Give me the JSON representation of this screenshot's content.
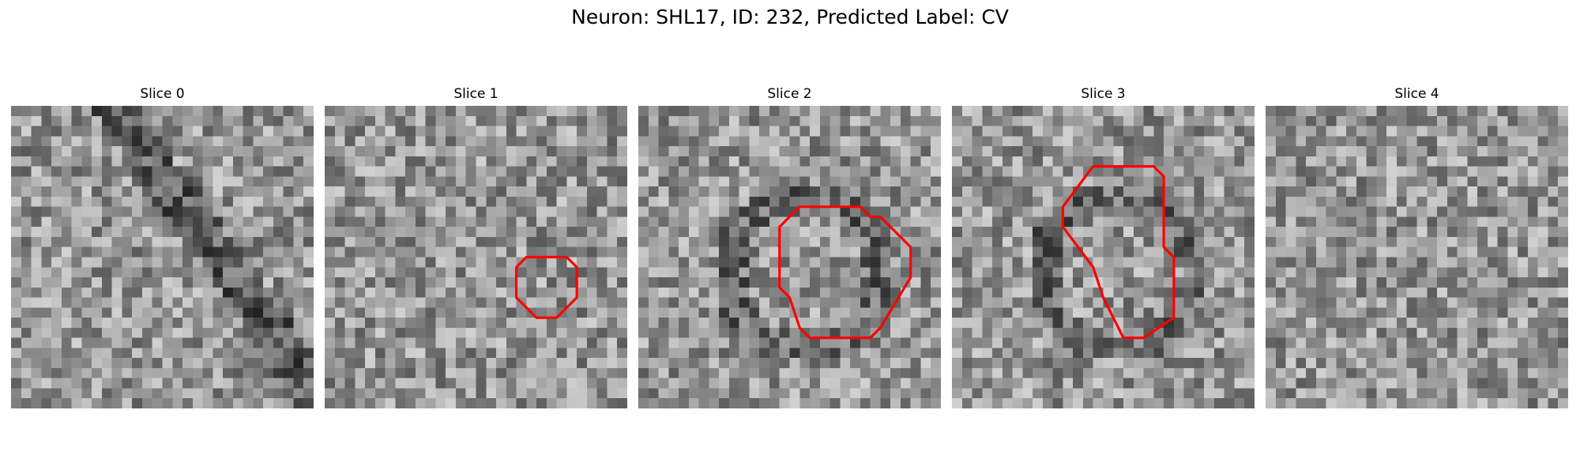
{
  "figure": {
    "title": "Neuron: SHL17, ID: 232, Predicted Label: CV"
  },
  "panels": [
    {
      "title": "Slice 0",
      "seed": 11,
      "contour": []
    },
    {
      "title": "Slice 1",
      "seed": 23,
      "contour": [
        [
          20,
          15
        ],
        [
          19,
          16
        ],
        [
          19,
          19
        ],
        [
          21,
          21
        ],
        [
          23,
          21
        ],
        [
          25,
          19
        ],
        [
          25,
          16
        ],
        [
          24,
          15
        ]
      ]
    },
    {
      "title": "Slice 2",
      "seed": 37,
      "contour": [
        [
          15,
          11
        ],
        [
          14,
          12
        ],
        [
          14,
          18
        ],
        [
          15,
          19
        ],
        [
          16,
          22
        ],
        [
          17,
          23
        ],
        [
          23,
          23
        ],
        [
          24,
          22
        ],
        [
          27,
          17
        ],
        [
          27,
          14
        ],
        [
          24,
          11
        ],
        [
          23,
          11
        ],
        [
          22,
          10
        ],
        [
          16,
          10
        ]
      ]
    },
    {
      "title": "Slice 3",
      "seed": 41,
      "contour": [
        [
          14,
          6
        ],
        [
          11,
          10
        ],
        [
          11,
          12
        ],
        [
          14,
          16
        ],
        [
          15,
          19
        ],
        [
          17,
          23
        ],
        [
          19,
          23
        ],
        [
          22,
          21
        ],
        [
          22,
          15
        ],
        [
          21,
          14
        ],
        [
          21,
          7
        ],
        [
          20,
          6
        ]
      ]
    },
    {
      "title": "Slice 4",
      "seed": 53,
      "contour": []
    }
  ],
  "style": {
    "contour_color": "#ff0000",
    "colormap": "gray"
  }
}
